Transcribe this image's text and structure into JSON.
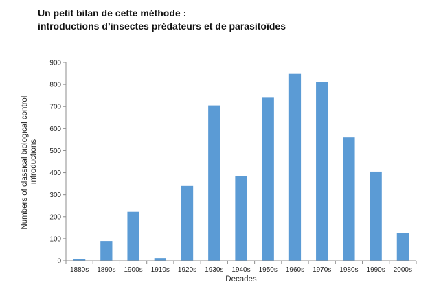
{
  "header": {
    "line1": "Un petit bilan de cette méthode :",
    "line2": "introductions d’insectes prédateurs et de parasitoïdes"
  },
  "chart_data": {
    "type": "bar",
    "categories": [
      "1880s",
      "1890s",
      "1900s",
      "1910s",
      "1920s",
      "1930s",
      "1940s",
      "1950s",
      "1960s",
      "1970s",
      "1980s",
      "1990s",
      "2000s"
    ],
    "values": [
      8,
      90,
      222,
      12,
      340,
      705,
      385,
      740,
      848,
      810,
      560,
      405,
      125
    ],
    "xlabel": "Decades",
    "ylabel_lines": [
      "Numbers of classical biological control",
      "introductions"
    ],
    "ylim": [
      0,
      900
    ],
    "yticks": [
      0,
      100,
      200,
      300,
      400,
      500,
      600,
      700,
      800,
      900
    ],
    "grid": false,
    "legend": "none",
    "bar_color": "#5b9bd5",
    "axis_color": "#8c8c8c"
  }
}
